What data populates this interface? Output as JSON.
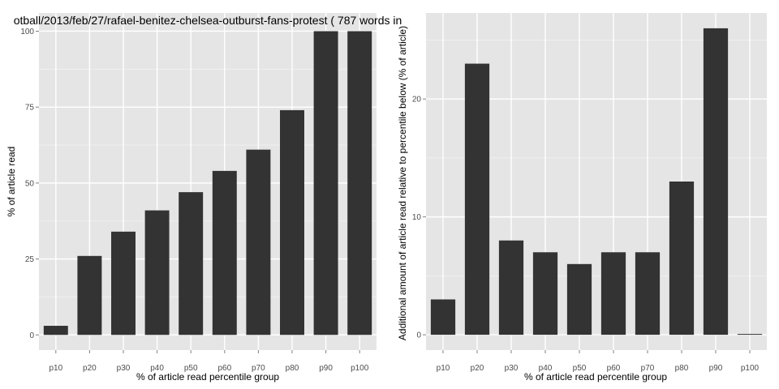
{
  "chart_data": [
    {
      "type": "bar",
      "title": "otball/2013/feb/27/rafael-benitez-chelsea-outburst-fans-protest ( 787 words in",
      "xlabel": "% of article read percentile group",
      "ylabel": "% of article read",
      "categories": [
        "p10",
        "p20",
        "p30",
        "p40",
        "p50",
        "p60",
        "p70",
        "p80",
        "p90",
        "p100"
      ],
      "values": [
        3,
        26,
        34,
        41,
        47,
        54,
        61,
        74,
        100,
        100
      ],
      "ylim": [
        -5,
        106
      ],
      "yticks": [
        0,
        25,
        50,
        75,
        100
      ],
      "grid": true,
      "bar_color": "#333333",
      "panel_color": "#e5e5e5"
    },
    {
      "type": "bar",
      "title": "",
      "xlabel": "% of article read percentile group",
      "ylabel": "Additional amount of article read relative to percentile below (% of article)",
      "categories": [
        "p10",
        "p20",
        "p30",
        "p40",
        "p50",
        "p60",
        "p70",
        "p80",
        "p90",
        "p100"
      ],
      "values": [
        3,
        23,
        8,
        7,
        6,
        7,
        7,
        13,
        26,
        0
      ],
      "ylim": [
        -1.3,
        27.3
      ],
      "yticks": [
        0,
        10,
        20
      ],
      "grid": true,
      "bar_color": "#333333",
      "panel_color": "#e5e5e5"
    }
  ]
}
